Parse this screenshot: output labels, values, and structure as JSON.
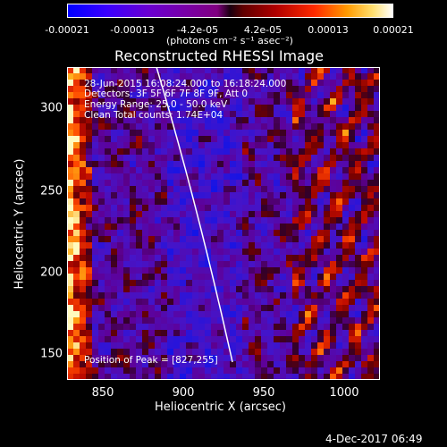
{
  "colorbar": {
    "labels": [
      "-0.00021",
      "-0.00013",
      "-4.2e-05",
      "4.2e-05",
      "0.00013",
      "0.00021"
    ],
    "unit": "(photons cm⁻² s⁻¹ asec⁻²)"
  },
  "plot": {
    "title": "Reconstructed RHESSI Image",
    "xlabel": "Heliocentric X (arcsec)",
    "ylabel": "Heliocentric Y (arcsec)",
    "x_ticks": [
      "850",
      "900",
      "950",
      "1000"
    ],
    "y_ticks": [
      "300",
      "250",
      "200",
      "150"
    ]
  },
  "annotations": {
    "time_range": "28-Jun-2015 16:08:24.000 to 16:18:24.000",
    "detectors": "Detectors: 3F 5F 6F 7F 8F 9F, Att 0",
    "energy_range": "Energy Range: 25.0 - 50.0 keV",
    "clean": "Clean    Total counts: 1.74E+04",
    "peak": "Position of Peak = [827,255]"
  },
  "footer": {
    "date": "4-Dec-2017 06:49"
  }
}
